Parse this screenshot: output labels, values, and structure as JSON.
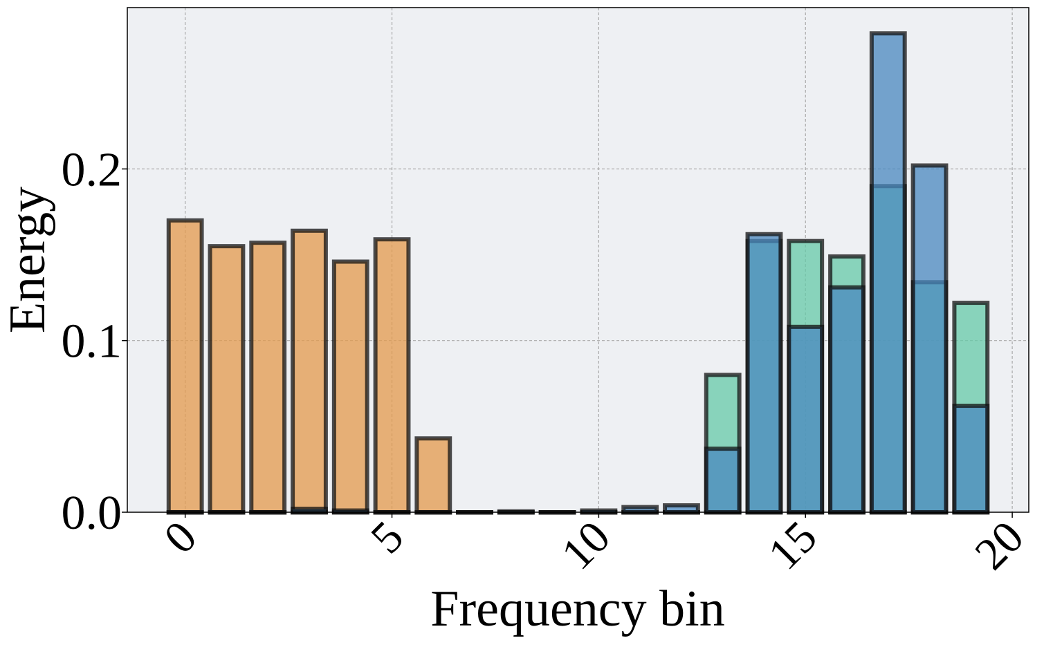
{
  "chart_data": {
    "type": "bar",
    "title": "",
    "xlabel": "Frequency bin",
    "ylabel": "Energy",
    "xlim": [
      -1.4,
      20.4
    ],
    "ylim": [
      0,
      0.294
    ],
    "xticks": [
      0,
      5,
      10,
      15,
      20
    ],
    "xtick_labels": [
      "0",
      "5",
      "10",
      "15",
      "20"
    ],
    "yticks": [
      0,
      0.1,
      0.2
    ],
    "ytick_labels": [
      "0.0",
      "0.1",
      "0.2"
    ],
    "grid": true,
    "legend": "none",
    "x": [
      0,
      1,
      2,
      3,
      4,
      5,
      6,
      7,
      8,
      9,
      10,
      11,
      12,
      13,
      14,
      15,
      16,
      17,
      18,
      19
    ],
    "series": [
      {
        "name": "orange",
        "color": "#E39A4C",
        "values": [
          0.17,
          0.155,
          0.157,
          0.164,
          0.146,
          0.159,
          0.043,
          0.0,
          0.0,
          0.0,
          0.0,
          0.0,
          0.0,
          0.0,
          0.0,
          0.0,
          0.0,
          0.0,
          0.0,
          0.0
        ]
      },
      {
        "name": "green",
        "color": "#66C9A8",
        "values": [
          0.0,
          0.0,
          0.0,
          0.0,
          0.0,
          0.0,
          0.0,
          0.0,
          0.0,
          0.0,
          0.0,
          0.0,
          0.0,
          0.08,
          0.158,
          0.158,
          0.149,
          0.19,
          0.134,
          0.122
        ]
      },
      {
        "name": "blue",
        "color": "#4A88BF",
        "values": [
          0.0,
          0.0,
          0.0,
          0.002,
          0.001,
          0.0,
          0.0,
          0.0,
          0.0005,
          0.0,
          0.001,
          0.003,
          0.004,
          0.037,
          0.162,
          0.108,
          0.131,
          0.279,
          0.202,
          0.062
        ]
      }
    ]
  }
}
